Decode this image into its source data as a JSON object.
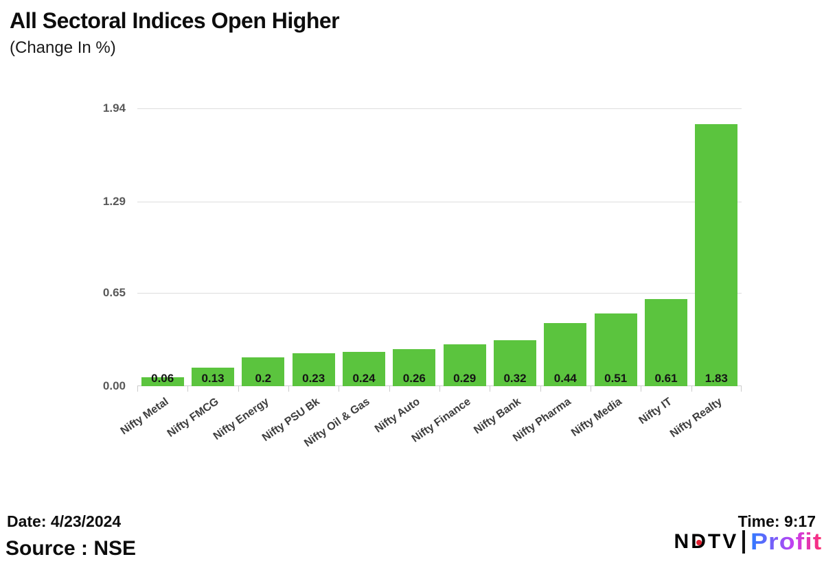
{
  "header": {
    "title": "All Sectoral Indices Open Higher",
    "subtitle": "(Change In %)"
  },
  "chart_data": {
    "type": "bar",
    "title": "All Sectoral Indices Open Higher",
    "subtitle": "(Change In %)",
    "categories": [
      "Nifty Metal",
      "Nifty FMCG",
      "Nifty Energy",
      "Nifty PSU Bk",
      "Nifty Oil & Gas",
      "Nifty Auto",
      "Nifty Finance",
      "Nifty Bank",
      "Nifty Pharma",
      "Nifty Media",
      "Nifty IT",
      "Nifty Realty"
    ],
    "values": [
      0.06,
      0.13,
      0.2,
      0.23,
      0.24,
      0.26,
      0.29,
      0.32,
      0.44,
      0.51,
      0.61,
      1.83
    ],
    "value_labels": [
      "0.06",
      "0.13",
      "0.2",
      "0.23",
      "0.24",
      "0.26",
      "0.29",
      "0.32",
      "0.44",
      "0.51",
      "0.61",
      "1.83"
    ],
    "xlabel": "",
    "ylabel": "",
    "y_ticks": [
      "0.00",
      "0.65",
      "1.29",
      "1.94"
    ],
    "y_tick_values": [
      0,
      0.65,
      1.29,
      1.94
    ],
    "ylim": [
      0,
      1.94
    ],
    "grid": true,
    "legend": false,
    "bar_color": "#5bc43e"
  },
  "footer": {
    "date_label": "Date: 4/23/2024",
    "source_label": "Source : NSE",
    "time_label": "Time: 9:17",
    "logo": {
      "ndtv_n": "N",
      "ndtv_d": "D",
      "ndtv_tv": "TV",
      "profit": "Profit",
      "colors": {
        "ndtv_text": "#000000",
        "dot": "#e11d2e",
        "profit_gradient_start": "#2e7bff",
        "profit_gradient_end": "#ff2d6d"
      }
    }
  }
}
